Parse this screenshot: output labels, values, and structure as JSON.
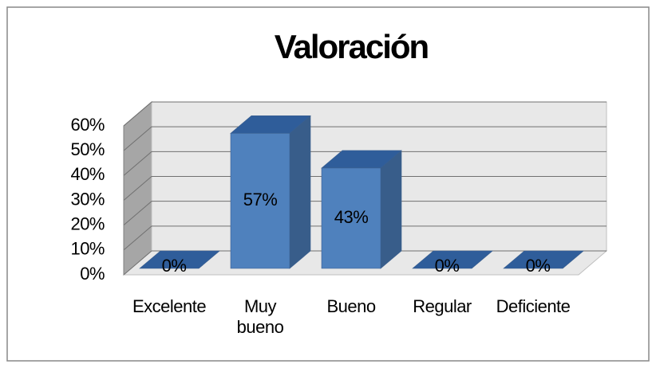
{
  "chart_data": {
    "type": "bar3d",
    "title": "Valoración",
    "categories": [
      "Excelente",
      "Muy bueno",
      "Bueno",
      "Regular",
      "Deficiente"
    ],
    "values": [
      0,
      57,
      43,
      0,
      0
    ],
    "value_labels": [
      "0%",
      "57%",
      "43%",
      "0%",
      "0%"
    ],
    "color": "#4f81bd",
    "ylim": [
      0,
      60
    ],
    "yticks": [
      {
        "value": 0,
        "label": "0%"
      },
      {
        "value": 10,
        "label": "10%"
      },
      {
        "value": 20,
        "label": "20%"
      },
      {
        "value": 30,
        "label": "30%"
      },
      {
        "value": 40,
        "label": "40%"
      },
      {
        "value": 50,
        "label": "50%"
      },
      {
        "value": 60,
        "label": "60%"
      }
    ],
    "grid": true
  }
}
